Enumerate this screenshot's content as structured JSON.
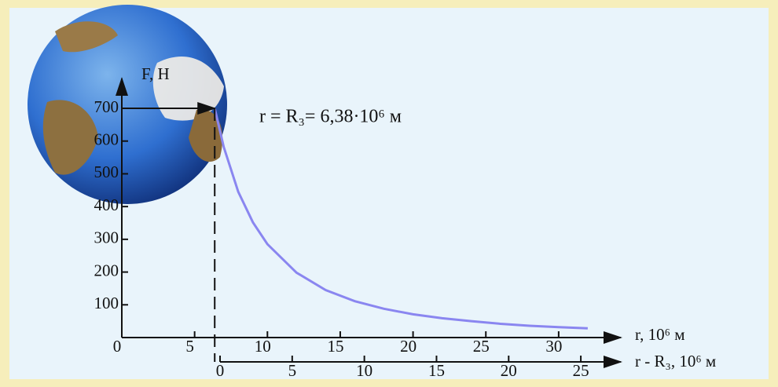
{
  "chart_data": {
    "type": "line",
    "ylabel": "F, H",
    "xlabel": "r, 10⁶ м",
    "x2label": "r - R₃, 10⁶ м",
    "annotation": "r = R₃= 6,38·10⁶ м",
    "x": [
      6.38,
      7,
      8,
      9,
      10,
      12,
      14,
      16,
      18,
      20,
      22,
      24,
      26,
      28,
      30,
      32
    ],
    "series": [
      {
        "color": "#8a86f0",
        "values": [
          700,
          582,
          445,
          352,
          285,
          198,
          145,
          111,
          88,
          71,
          59,
          50,
          42,
          36,
          32,
          28
        ]
      }
    ],
    "xlim": [
      0,
      34
    ],
    "xticks": [
      0,
      5,
      10,
      15,
      20,
      25,
      30
    ],
    "x2lim": [
      0,
      27.5
    ],
    "x2ticks": [
      0,
      5,
      10,
      15,
      20,
      25
    ],
    "ylim": [
      0,
      700
    ],
    "yticks": [
      100,
      200,
      300,
      400,
      500,
      600,
      700
    ]
  }
}
